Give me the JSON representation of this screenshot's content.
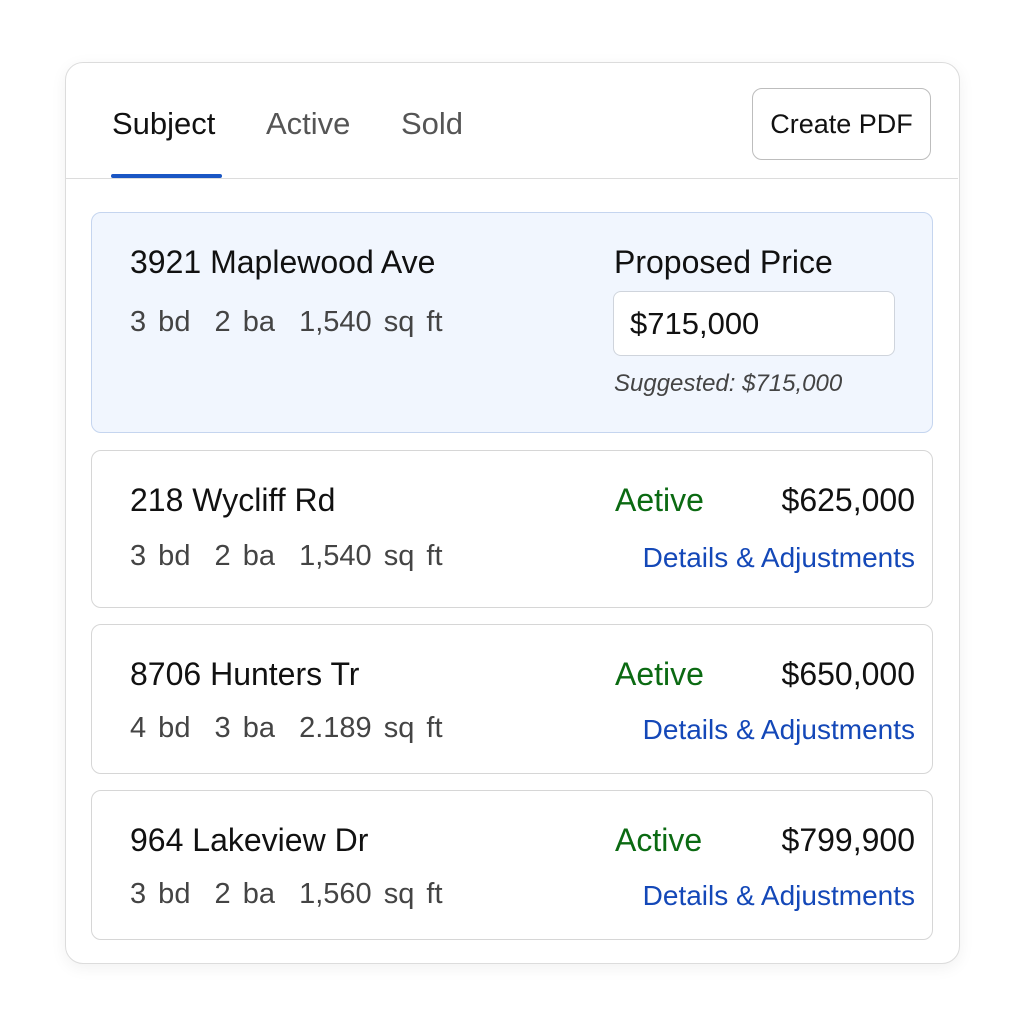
{
  "tabs": [
    {
      "label": "Subject",
      "active": true
    },
    {
      "label": "Active",
      "active": false
    },
    {
      "label": "Sold",
      "active": false
    }
  ],
  "toolbar": {
    "create_pdf_label": "Create PDF"
  },
  "subject": {
    "address": "3921 Maplewood Ave",
    "stats": "3 bd  2 ba  1,540 sq ft",
    "proposed_price_label": "Proposed Price",
    "proposed_price_value": "$715,000",
    "suggested": "Suggested: $715,000"
  },
  "listings": [
    {
      "address": "218 Wycliff Rd",
      "stats": "3 bd  2 ba  1,540 sq ft",
      "status": "Aetive",
      "price": "$625,000",
      "link": "Details & Adjustments"
    },
    {
      "address": "8706 Hunters Tr",
      "stats": "4 bd  3 ba  2.189 sq ft",
      "status": "Aetive",
      "price": "$650,000",
      "link": "Details & Adjustments"
    },
    {
      "address": "964 Lakeview Dr",
      "stats": "3 bd  2 ba  1,560 sq ft",
      "status": "Active",
      "price": "$799,900",
      "link": "Details & Adjustments"
    }
  ],
  "colors": {
    "accent": "#1a56c4",
    "status_active": "#0b6a12",
    "link": "#1448b8",
    "subject_bg": "#f1f6fe"
  }
}
